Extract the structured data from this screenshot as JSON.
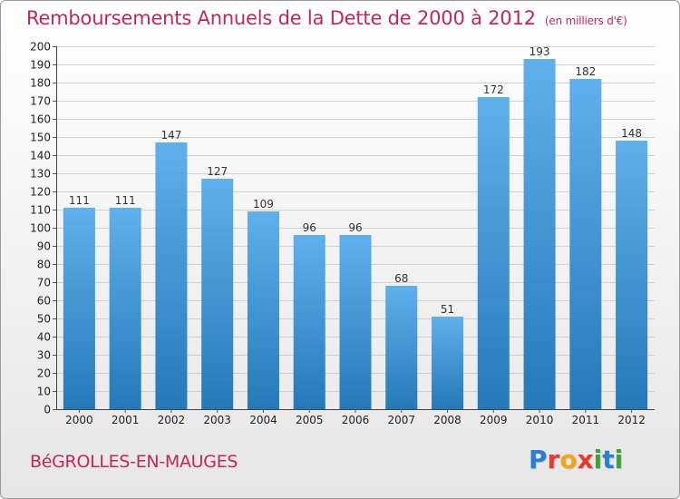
{
  "header": {
    "title": "Remboursements Annuels de la Dette de 2000 à 2012",
    "unit": "(en milliers d'€)"
  },
  "footer": {
    "town": "BéGROLLES-EN-MAUGES",
    "logo_letters": [
      "P",
      "r",
      "o",
      "x",
      "i",
      "t",
      "i"
    ],
    "logo_colors": [
      "#2a7fd0",
      "#e63a2e",
      "#f2a515",
      "#e63a2e",
      "#3aa63a",
      "#2a7fd0",
      "#3aa63a"
    ]
  },
  "colors": {
    "bar_light": "#5fb0ec",
    "bar_dark": "#2679b8",
    "title": "#c2265f"
  },
  "chart_data": {
    "type": "bar",
    "title": "Remboursements Annuels de la Dette de 2000 à 2012",
    "xlabel": "",
    "ylabel": "",
    "categories": [
      "2000",
      "2001",
      "2002",
      "2003",
      "2004",
      "2005",
      "2006",
      "2007",
      "2008",
      "2009",
      "2010",
      "2011",
      "2012"
    ],
    "values": [
      111,
      111,
      147,
      127,
      109,
      96,
      96,
      68,
      51,
      172,
      193,
      182,
      148
    ],
    "ylim": [
      0,
      200
    ],
    "yticks": [
      0,
      10,
      20,
      30,
      40,
      50,
      60,
      70,
      80,
      90,
      100,
      110,
      120,
      130,
      140,
      150,
      160,
      170,
      180,
      190,
      200
    ],
    "grid": true,
    "legend": "none"
  }
}
